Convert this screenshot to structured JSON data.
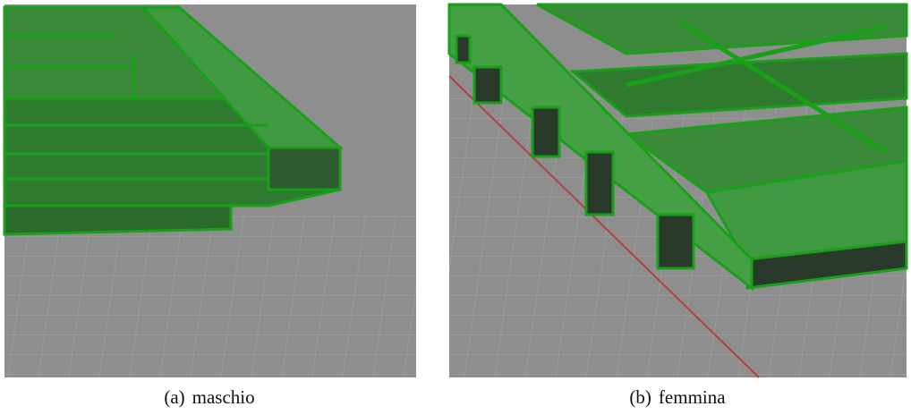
{
  "figures": [
    {
      "label": "(a)",
      "caption": "maschio"
    },
    {
      "label": "(b)",
      "caption": "femmina"
    }
  ]
}
